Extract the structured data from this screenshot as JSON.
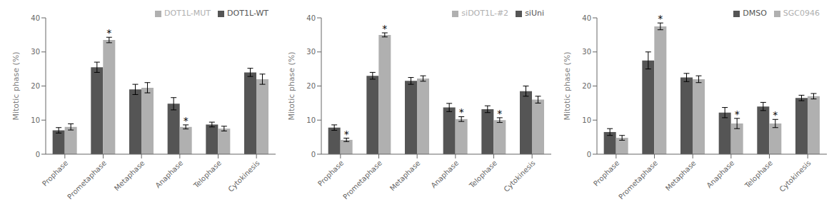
{
  "chart_data": [
    {
      "type": "bar",
      "categories": [
        "Prophase",
        "Prometaphase",
        "Metaphase",
        "Anaphase",
        "Telophase",
        "Cytokinesis"
      ],
      "series": [
        {
          "name": "DOT1L-WT",
          "color": "#555555",
          "values": [
            7.0,
            25.5,
            19.0,
            14.8,
            8.7,
            24.0
          ],
          "errors": [
            0.8,
            1.5,
            1.5,
            1.8,
            0.7,
            1.2
          ]
        },
        {
          "name": "DOT1L-MUT",
          "color": "#b0b0b0",
          "values": [
            8.0,
            33.5,
            19.5,
            8.0,
            7.5,
            22.0
          ],
          "errors": [
            0.9,
            0.8,
            1.5,
            0.6,
            0.7,
            1.5
          ]
        }
      ],
      "annotations": [
        {
          "text": "*",
          "category": "Prometaphase",
          "series": "DOT1L-MUT"
        },
        {
          "text": "*",
          "category": "Anaphase",
          "series": "DOT1L-MUT"
        }
      ],
      "ylabel": "Mitotic phase (%)",
      "ylim": [
        0,
        40
      ],
      "yticks": [
        0,
        10,
        20,
        30,
        40
      ],
      "grid": false,
      "legend": "upper right"
    },
    {
      "type": "bar",
      "categories": [
        "Prophase",
        "Prometaphase",
        "Metaphase",
        "Anaphase",
        "Telophase",
        "Cytokinesis"
      ],
      "series": [
        {
          "name": "siUni",
          "color": "#555555",
          "values": [
            7.8,
            23.0,
            21.5,
            13.7,
            13.2,
            18.5
          ],
          "errors": [
            0.8,
            1.0,
            1.0,
            1.2,
            1.0,
            1.5
          ]
        },
        {
          "name": "siDOT1L-#2",
          "color": "#b0b0b0",
          "values": [
            4.2,
            35.0,
            22.2,
            10.3,
            10.0,
            16.0
          ],
          "errors": [
            0.5,
            0.6,
            0.8,
            0.7,
            0.7,
            1.0
          ]
        }
      ],
      "annotations": [
        {
          "text": "*",
          "category": "Prophase",
          "series": "siDOT1L-#2"
        },
        {
          "text": "*",
          "category": "Prometaphase",
          "series": "siDOT1L-#2"
        },
        {
          "text": "*",
          "category": "Anaphase",
          "series": "siDOT1L-#2"
        },
        {
          "text": "*",
          "category": "Telophase",
          "series": "siDOT1L-#2"
        }
      ],
      "ylabel": "Mitotic phase (%)",
      "ylim": [
        0,
        40
      ],
      "yticks": [
        0,
        10,
        20,
        30,
        40
      ],
      "grid": false,
      "legend": "upper right"
    },
    {
      "type": "bar",
      "categories": [
        "Prophase",
        "Prometaphase",
        "Metaphase",
        "Anaphase",
        "Telophase",
        "Cytokinesis"
      ],
      "series": [
        {
          "name": "DMSO",
          "color": "#555555",
          "values": [
            6.5,
            27.5,
            22.5,
            12.2,
            14.0,
            16.5
          ],
          "errors": [
            1.0,
            2.5,
            1.2,
            1.5,
            1.2,
            0.8
          ]
        },
        {
          "name": "SGC0946",
          "color": "#b0b0b0",
          "values": [
            4.8,
            37.5,
            22.0,
            9.0,
            9.0,
            17.0
          ],
          "errors": [
            0.7,
            1.0,
            1.0,
            1.5,
            1.2,
            0.8
          ]
        }
      ],
      "annotations": [
        {
          "text": "*",
          "category": "Prometaphase",
          "series": "SGC0946"
        },
        {
          "text": "*",
          "category": "Anaphase",
          "series": "SGC0946"
        },
        {
          "text": "*",
          "category": "Telophase",
          "series": "SGC0946"
        }
      ],
      "ylabel": "Mitotic phase (%)",
      "ylim": [
        0,
        40
      ],
      "yticks": [
        0,
        10,
        20,
        30,
        40
      ],
      "grid": false,
      "legend": "upper right"
    }
  ]
}
